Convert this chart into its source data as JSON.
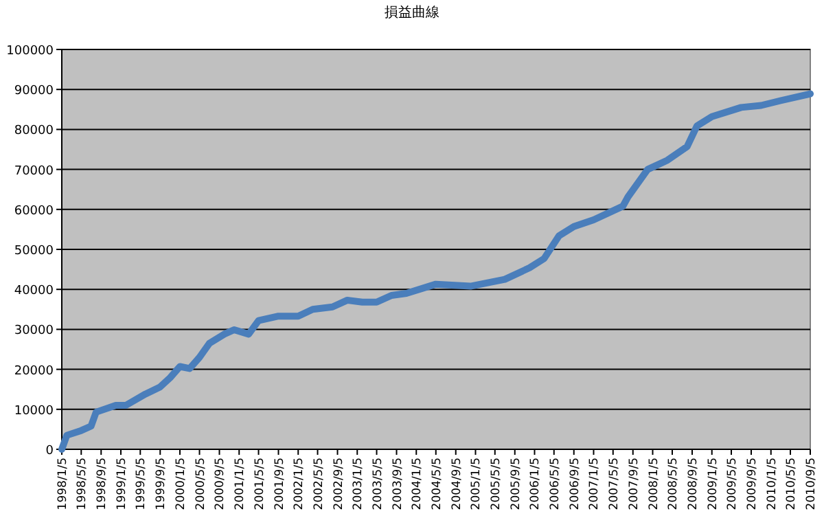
{
  "chart_data": {
    "type": "line",
    "title": "損益曲線",
    "x": [
      "1998-01-05",
      "1998-02-05",
      "1998-05-05",
      "1998-07-05",
      "1998-08-05",
      "1998-12-05",
      "1999-02-05",
      "1999-06-05",
      "1999-09-05",
      "1999-11-05",
      "2000-01-05",
      "2000-03-05",
      "2000-05-05",
      "2000-07-05",
      "2000-10-05",
      "2000-12-05",
      "2001-03-05",
      "2001-05-05",
      "2001-09-05",
      "2002-01-05",
      "2002-04-05",
      "2002-08-05",
      "2002-11-05",
      "2003-02-05",
      "2003-05-05",
      "2003-08-05",
      "2003-11-05",
      "2004-05-05",
      "2004-12-05",
      "2005-07-05",
      "2005-12-05",
      "2006-03-05",
      "2006-06-05",
      "2006-09-05",
      "2007-01-05",
      "2007-07-05",
      "2007-08-05",
      "2007-12-05",
      "2008-04-05",
      "2008-08-05",
      "2008-10-05",
      "2009-01-05",
      "2009-07-05",
      "2009-11-05",
      "2010-03-05",
      "2010-09-05"
    ],
    "series": [
      {
        "color": "#4a7ebb",
        "values": [
          0,
          3500,
          4700,
          5800,
          9300,
          11000,
          11000,
          13800,
          15600,
          17900,
          20700,
          20200,
          23000,
          26500,
          28800,
          29900,
          28800,
          32200,
          33300,
          33300,
          35000,
          35600,
          37300,
          36800,
          36800,
          38500,
          39000,
          41300,
          40800,
          42500,
          45400,
          47700,
          53400,
          55700,
          57400,
          60800,
          63100,
          70000,
          72300,
          75700,
          80900,
          83200,
          85500,
          86000,
          87200,
          88900
        ]
      }
    ],
    "xlim": [
      "1998-01-05",
      "2010-09-05"
    ],
    "xticks": [
      {
        "value": "1998-01-05",
        "label": "1998/1/5"
      },
      {
        "value": "1998-05-05",
        "label": "1998/5/5"
      },
      {
        "value": "1998-09-05",
        "label": "1998/9/5"
      },
      {
        "value": "1999-01-05",
        "label": "1999/1/5"
      },
      {
        "value": "1999-05-05",
        "label": "1999/5/5"
      },
      {
        "value": "1999-09-05",
        "label": "1999/9/5"
      },
      {
        "value": "2000-01-05",
        "label": "2000/1/5"
      },
      {
        "value": "2000-05-05",
        "label": "2000/5/5"
      },
      {
        "value": "2000-09-05",
        "label": "2000/9/5"
      },
      {
        "value": "2001-01-05",
        "label": "2001/1/5"
      },
      {
        "value": "2001-05-05",
        "label": "2001/5/5"
      },
      {
        "value": "2001-09-05",
        "label": "2001/9/5"
      },
      {
        "value": "2002-01-05",
        "label": "2002/1/5"
      },
      {
        "value": "2002-05-05",
        "label": "2002/5/5"
      },
      {
        "value": "2002-09-05",
        "label": "2002/9/5"
      },
      {
        "value": "2003-01-05",
        "label": "2003/1/5"
      },
      {
        "value": "2003-05-05",
        "label": "2003/5/5"
      },
      {
        "value": "2003-09-05",
        "label": "2003/9/5"
      },
      {
        "value": "2004-01-05",
        "label": "2004/1/5"
      },
      {
        "value": "2004-05-05",
        "label": "2004/5/5"
      },
      {
        "value": "2004-09-05",
        "label": "2004/9/5"
      },
      {
        "value": "2005-01-05",
        "label": "2005/1/5"
      },
      {
        "value": "2005-05-05",
        "label": "2005/5/5"
      },
      {
        "value": "2005-09-05",
        "label": "2005/9/5"
      },
      {
        "value": "2006-01-05",
        "label": "2006/1/5"
      },
      {
        "value": "2006-05-05",
        "label": "2006/5/5"
      },
      {
        "value": "2006-09-05",
        "label": "2006/9/5"
      },
      {
        "value": "2007-01-05",
        "label": "2007/1/5"
      },
      {
        "value": "2007-05-05",
        "label": "2007/5/5"
      },
      {
        "value": "2007-09-05",
        "label": "2007/9/5"
      },
      {
        "value": "2008-01-05",
        "label": "2008/1/5"
      },
      {
        "value": "2008-05-05",
        "label": "2008/5/5"
      },
      {
        "value": "2008-09-05",
        "label": "2008/9/5"
      },
      {
        "value": "2009-01-05",
        "label": "2009/1/5"
      },
      {
        "value": "2009-05-05",
        "label": "2009/5/5"
      },
      {
        "value": "2009-09-05",
        "label": "2009/9/5"
      },
      {
        "value": "2010-01-05",
        "label": "2010/1/5"
      },
      {
        "value": "2010-05-05",
        "label": "2010/5/5"
      },
      {
        "value": "2010-09-05",
        "label": "2010/9/5"
      }
    ],
    "ylim": [
      0,
      100000
    ],
    "yticks": [
      0,
      10000,
      20000,
      30000,
      40000,
      50000,
      60000,
      70000,
      80000,
      90000,
      100000
    ],
    "grid": "y",
    "marker": "none",
    "line_style": "solid"
  }
}
